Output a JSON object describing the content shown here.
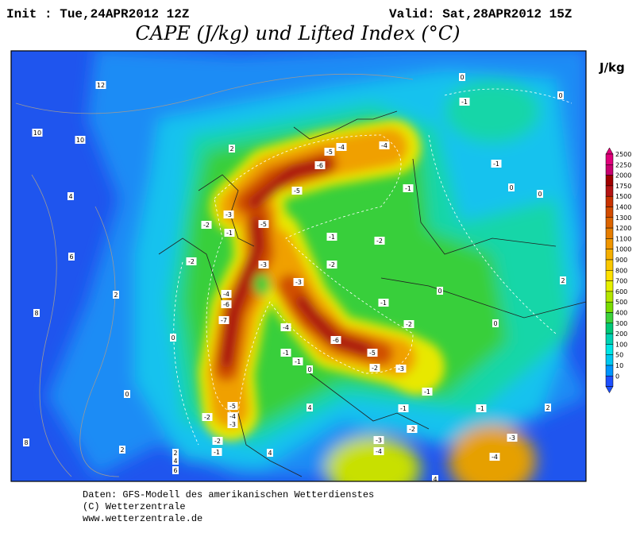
{
  "header": {
    "init": "Init : Tue,24APR2012 12Z",
    "valid": "Valid: Sat,28APR2012 15Z",
    "title": "CAPE (J/kg) und Lifted Index (°C)",
    "unit": "J/kg"
  },
  "legend": {
    "labels": [
      "2500",
      "2250",
      "2000",
      "1750",
      "1500",
      "1400",
      "1300",
      "1200",
      "1100",
      "1000",
      "900",
      "800",
      "700",
      "600",
      "500",
      "400",
      "300",
      "200",
      "100",
      "50",
      "10",
      "0"
    ]
  },
  "map": {
    "labels": [
      "12",
      "10",
      "10",
      "2",
      "4",
      "6",
      "2",
      "8",
      "0",
      "0",
      "2",
      "8",
      "2",
      "4",
      "6",
      "-2",
      "-2",
      "-1",
      "-5",
      "-4",
      "-3",
      "-7",
      "-4",
      "-6",
      "-3",
      "-2",
      "-1",
      "-2",
      "-5",
      "-3",
      "-6",
      "-5",
      "-4",
      "-4",
      "-5",
      "-3",
      "-1",
      "-1",
      "-2",
      "-2",
      "-1",
      "-2",
      "-6",
      "-5",
      "-2",
      "-4",
      "-1",
      "-1",
      "0",
      "-3",
      "-1",
      "-1",
      "-1",
      "2",
      "2",
      "0",
      "0",
      "0",
      "0",
      "-1",
      "-1",
      "0",
      "0",
      "-3",
      "-4",
      "-3",
      "-4",
      "-2",
      "4",
      "4",
      "4"
    ]
  },
  "footer": {
    "lines": [
      "Daten: GFS-Modell des amerikanischen Wetterdienstes",
      "(C) Wetterzentrale",
      "www.wetterzentrale.de"
    ]
  }
}
